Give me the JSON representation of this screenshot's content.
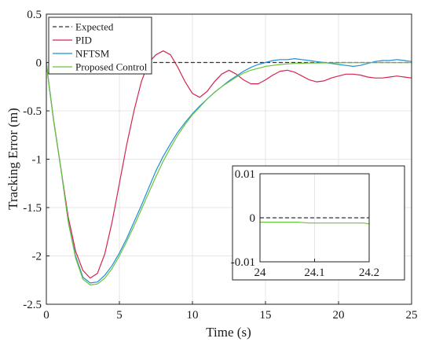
{
  "chart_data": [
    {
      "type": "line",
      "xlabel": "Time (s)",
      "ylabel": "Tracking Error (m)",
      "xlim": [
        0,
        25
      ],
      "ylim": [
        -2.5,
        0.5
      ],
      "xticks": [
        0,
        5,
        10,
        15,
        20,
        25
      ],
      "xtick_labels": [
        "0",
        "5",
        "10",
        "15",
        "20",
        "25"
      ],
      "yticks": [
        0.5,
        0,
        -0.5,
        -1,
        -1.5,
        -2,
        -2.5
      ],
      "ytick_labels": [
        "0.5",
        "0",
        "-0.5",
        "-1",
        "-1.5",
        "-2",
        "-2.5"
      ],
      "grid": true,
      "legend_position": "top-left",
      "series": [
        {
          "name": "Expected",
          "color": "#333333",
          "style": "dashed",
          "x": [
            0,
            25
          ],
          "y": [
            0,
            0
          ]
        },
        {
          "name": "PID",
          "color": "#d6244f",
          "style": "solid",
          "x": [
            0,
            0.2,
            0.5,
            1,
            1.5,
            2,
            2.5,
            3,
            3.5,
            4,
            4.5,
            5,
            5.5,
            6,
            6.5,
            7,
            7.5,
            8,
            8.5,
            9,
            9.5,
            10,
            10.5,
            11,
            11.5,
            12,
            12.5,
            13,
            13.5,
            14,
            14.5,
            15,
            15.5,
            16,
            16.5,
            17,
            17.5,
            18,
            18.5,
            19,
            19.5,
            20,
            20.5,
            21,
            21.5,
            22,
            22.5,
            23,
            23.5,
            24,
            24.5,
            25
          ],
          "y": [
            0,
            -0.25,
            -0.6,
            -1.1,
            -1.6,
            -1.95,
            -2.15,
            -2.23,
            -2.18,
            -1.98,
            -1.65,
            -1.25,
            -0.85,
            -0.5,
            -0.2,
            0.0,
            0.08,
            0.12,
            0.08,
            -0.05,
            -0.2,
            -0.32,
            -0.36,
            -0.3,
            -0.2,
            -0.12,
            -0.08,
            -0.12,
            -0.18,
            -0.22,
            -0.22,
            -0.18,
            -0.13,
            -0.09,
            -0.08,
            -0.1,
            -0.14,
            -0.18,
            -0.2,
            -0.19,
            -0.16,
            -0.14,
            -0.12,
            -0.12,
            -0.13,
            -0.15,
            -0.16,
            -0.16,
            -0.15,
            -0.14,
            -0.15,
            -0.16
          ]
        },
        {
          "name": "NFTSM",
          "color": "#1f8fd6",
          "style": "solid",
          "x": [
            0,
            0.2,
            0.5,
            1,
            1.5,
            2,
            2.5,
            3,
            3.5,
            4,
            4.5,
            5,
            5.5,
            6,
            6.5,
            7,
            7.5,
            8,
            8.5,
            9,
            9.5,
            10,
            10.5,
            11,
            11.5,
            12,
            12.5,
            13,
            13.5,
            14,
            14.5,
            15,
            15.5,
            16,
            16.5,
            17,
            17.5,
            18,
            18.5,
            19,
            19.5,
            20,
            20.5,
            21,
            21.5,
            22,
            22.5,
            23,
            23.5,
            24,
            24.5,
            25
          ],
          "y": [
            0,
            -0.25,
            -0.6,
            -1.1,
            -1.65,
            -2.0,
            -2.22,
            -2.28,
            -2.27,
            -2.2,
            -2.1,
            -1.97,
            -1.82,
            -1.65,
            -1.48,
            -1.3,
            -1.12,
            -0.97,
            -0.84,
            -0.72,
            -0.62,
            -0.53,
            -0.45,
            -0.38,
            -0.31,
            -0.25,
            -0.19,
            -0.14,
            -0.09,
            -0.05,
            -0.02,
            0.0,
            0.02,
            0.03,
            0.03,
            0.04,
            0.03,
            0.02,
            0.01,
            0.0,
            -0.01,
            -0.02,
            -0.03,
            -0.04,
            -0.03,
            -0.01,
            0.01,
            0.02,
            0.02,
            0.03,
            0.02,
            0.01
          ]
        },
        {
          "name": "Proposed Control",
          "color": "#6ac33a",
          "style": "solid",
          "x": [
            0,
            0.2,
            0.5,
            1,
            1.5,
            2,
            2.5,
            3,
            3.5,
            4,
            4.5,
            5,
            5.5,
            6,
            6.5,
            7,
            7.5,
            8,
            8.5,
            9,
            9.5,
            10,
            10.5,
            11,
            11.5,
            12,
            12.5,
            13,
            13.5,
            14,
            14.5,
            15,
            15.5,
            16,
            16.5,
            17,
            17.5,
            18,
            18.5,
            19,
            19.5,
            20,
            20.5,
            21,
            21.5,
            22,
            22.5,
            23,
            23.5,
            24,
            24.5,
            25
          ],
          "y": [
            0,
            -0.25,
            -0.6,
            -1.1,
            -1.65,
            -2.02,
            -2.24,
            -2.3,
            -2.29,
            -2.23,
            -2.13,
            -2.0,
            -1.85,
            -1.69,
            -1.52,
            -1.35,
            -1.18,
            -1.02,
            -0.88,
            -0.75,
            -0.64,
            -0.54,
            -0.46,
            -0.38,
            -0.31,
            -0.25,
            -0.2,
            -0.15,
            -0.11,
            -0.08,
            -0.06,
            -0.04,
            -0.03,
            -0.02,
            -0.015,
            -0.01,
            -0.008,
            -0.006,
            -0.005,
            -0.004,
            -0.003,
            -0.003,
            -0.002,
            -0.002,
            -0.002,
            -0.002,
            -0.002,
            -0.002,
            -0.002,
            -0.002,
            -0.002,
            -0.002
          ]
        }
      ]
    },
    {
      "type": "line",
      "role": "inset",
      "xlim": [
        24,
        24.2
      ],
      "ylim": [
        -0.01,
        0.01
      ],
      "xticks": [
        24,
        24.1,
        24.2
      ],
      "xtick_labels": [
        "24",
        "24.1",
        "24.2"
      ],
      "yticks": [
        0.01,
        0,
        -0.01
      ],
      "ytick_labels": [
        "0.01",
        "0",
        "-0.01"
      ],
      "grid": true,
      "series": [
        {
          "ref": "Expected",
          "color": "#333333",
          "style": "dashed",
          "x": [
            24,
            24.2
          ],
          "y": [
            0,
            0
          ]
        },
        {
          "ref": "Proposed Control",
          "color": "#6ac33a",
          "style": "solid",
          "x": [
            24,
            24.07,
            24.09,
            24.19,
            24.2
          ],
          "y": [
            -0.001,
            -0.001,
            -0.0012,
            -0.0012,
            -0.0014
          ]
        }
      ]
    }
  ]
}
